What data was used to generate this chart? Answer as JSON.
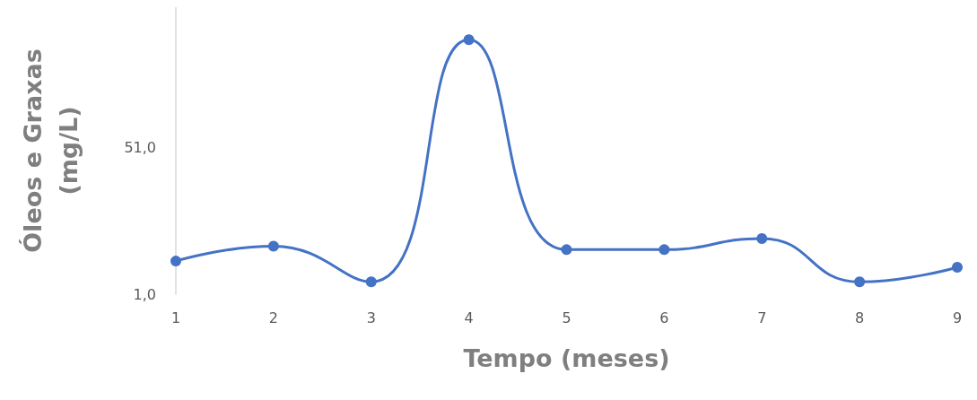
{
  "chart_data": {
    "type": "line",
    "xlabel": "Tempo (meses)",
    "ylabel": "Óleos e Graxas\n(mg/L)",
    "x": [
      1,
      2,
      3,
      4,
      5,
      6,
      7,
      8,
      9
    ],
    "series": [
      {
        "color": "#4472c4",
        "values": [
          12.3,
          17.4,
          5.2,
          87.9,
          16.2,
          16.2,
          20.0,
          5.2,
          10.2
        ]
      }
    ],
    "xlim": [
      1,
      9
    ],
    "xticks": [
      1,
      2,
      3,
      4,
      5,
      6,
      7,
      8,
      9
    ],
    "ylim": [
      1,
      99
    ],
    "yticks": [
      {
        "value": 1,
        "label": "1,0"
      },
      {
        "value": 51,
        "label": "51,0"
      }
    ],
    "grid": false,
    "marker": "circle",
    "line_style": "solid"
  }
}
